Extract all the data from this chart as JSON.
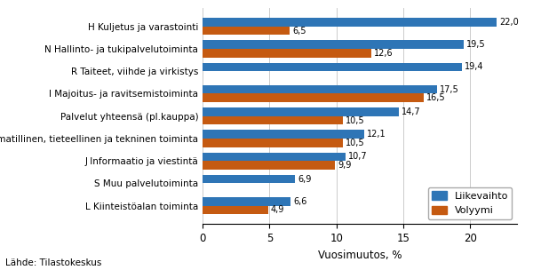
{
  "categories": [
    "L Kiinteistöalan toiminta",
    "S Muu palvelutoiminta",
    "J Informaatio ja viestintä",
    "M Ammatillinen, tieteellinen ja tekninen toiminta",
    "Palvelut yhteensä (pl.kauppa)",
    "I Majoitus- ja ravitsemistoiminta",
    "R Taiteet, viihde ja virkistys",
    "N Hallinto- ja tukipalvelutoiminta",
    "H Kuljetus ja varastointi"
  ],
  "liikevaihto": [
    6.6,
    6.9,
    10.7,
    12.1,
    14.7,
    17.5,
    19.4,
    19.5,
    22.0
  ],
  "volyymi": [
    4.9,
    null,
    9.9,
    10.5,
    10.5,
    16.5,
    null,
    12.6,
    6.5
  ],
  "liikevaihto_color": "#2E75B6",
  "volyymi_color": "#C55A11",
  "xlabel": "Vuosimuutos, %",
  "xlim": [
    0,
    23.5
  ],
  "xticks": [
    0,
    5,
    10,
    15,
    20
  ],
  "footer": "Lähde: Tilastokeskus",
  "legend_liikevaihto": "Liikevaihto",
  "legend_volyymi": "Volyymi",
  "bar_height": 0.38,
  "label_fontsize": 7.0
}
